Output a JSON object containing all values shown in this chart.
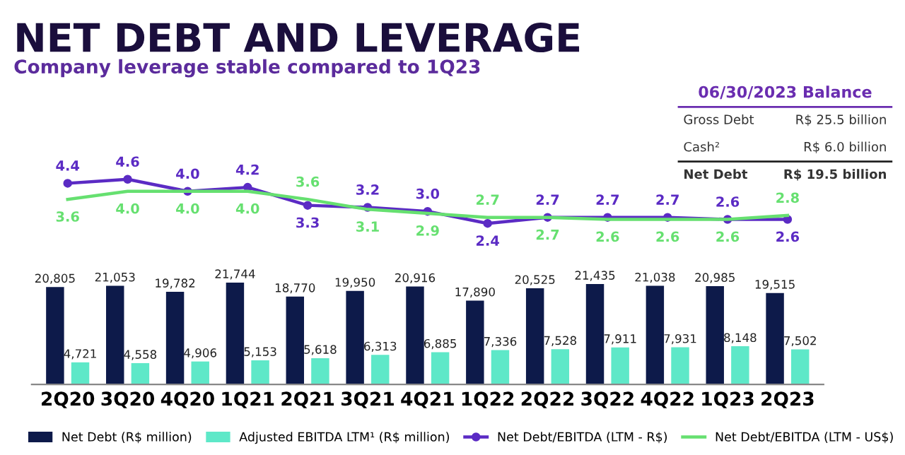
{
  "chart_data": [
    {
      "type": "line",
      "title": "NET DEBT AND LEVERAGE",
      "subtitle": "Company leverage stable compared to 1Q23",
      "categories": [
        null,
        null,
        null,
        null,
        null,
        null,
        null,
        null,
        null,
        null,
        null,
        null,
        null
      ],
      "series": [
        {
          "name": "Net Debt/EBITDA (LTM - R$)",
          "color": "#5b2bc4",
          "marker": "circle",
          "values": [
            4.4,
            4.6,
            4.0,
            4.2,
            3.3,
            3.2,
            3.0,
            2.4,
            2.7,
            2.7,
            2.7,
            2.6,
            2.6
          ],
          "value_labels": [
            "4.4",
            "4.6",
            "4.0",
            "4.2",
            "3.3",
            "3.2",
            "3.0",
            "2.4",
            "2.7",
            "2.7",
            "2.7",
            "2.6",
            "2.6"
          ]
        },
        {
          "name": "Net Debt/EBITDA (LTM - US$)",
          "color": "#66e070",
          "values": [
            3.6,
            4.0,
            4.0,
            4.0,
            3.6,
            3.1,
            2.9,
            2.7,
            2.7,
            2.6,
            2.6,
            2.6,
            2.8
          ],
          "value_labels": [
            "3.6",
            "4.0",
            "4.0",
            "4.0",
            "3.6",
            "3.1",
            "2.9",
            "2.7",
            "2.7",
            "2.6",
            "2.6",
            "2.6",
            "2.8"
          ]
        }
      ],
      "tick_labels": false,
      "legend": "bottom",
      "annotations": [
        "06/30/2023 Balance",
        "Gross Debt",
        "R$ 25.5 billion",
        "Cash²",
        "R$ 6.0 billion",
        "Net Debt",
        "R$ 19.5 billion"
      ]
    },
    {
      "type": "bar",
      "categories": [
        "2Q20",
        "3Q20",
        "4Q20",
        "1Q21",
        "2Q21",
        "3Q21",
        "4Q21",
        "1Q22",
        "2Q22",
        "3Q22",
        "4Q22",
        "1Q23",
        "2Q23"
      ],
      "series": [
        {
          "name": "Net Debt (R$ million)",
          "color": "#0d1a4a",
          "values": [
            20805,
            21053,
            19782,
            21744,
            18770,
            19950,
            20916,
            17890,
            20525,
            21435,
            21038,
            20985,
            19515
          ],
          "value_labels": [
            "20,805",
            "21,053",
            "19,782",
            "21,744",
            "18,770",
            "19,950",
            "20,916",
            "17,890",
            "20,525",
            "21,435",
            "21,038",
            "20,985",
            "19,515"
          ]
        },
        {
          "name": "Adjusted EBITDA LTM¹ (R$ million)",
          "color": "#5ee8c8",
          "values": [
            4721,
            4558,
            4906,
            5153,
            5618,
            6313,
            6885,
            7336,
            7528,
            7911,
            7931,
            8148,
            7502
          ],
          "value_labels": [
            "4,721",
            "4,558",
            "4,906",
            "5,153",
            "5,618",
            "6,313",
            "6,885",
            "7,336",
            "7,528",
            "7,911",
            "7,931",
            "8,148",
            "7,502"
          ]
        }
      ],
      "ylim": [
        0,
        21744
      ],
      "tick_labels": "x",
      "legend": "bottom"
    }
  ]
}
